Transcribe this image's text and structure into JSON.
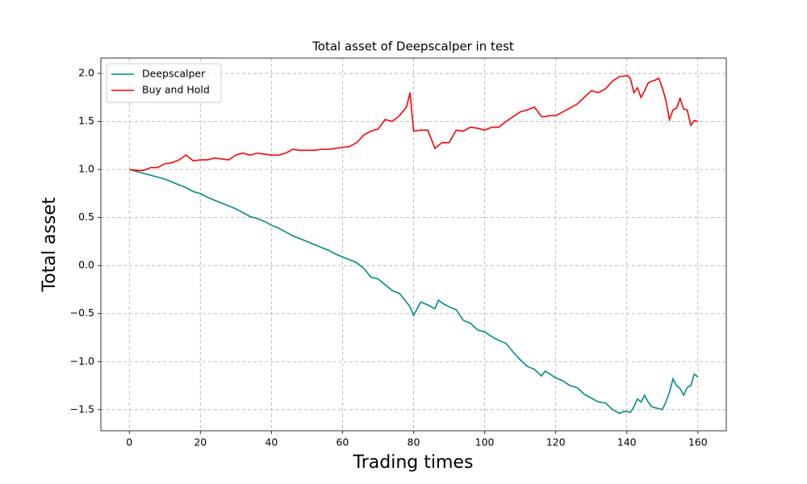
{
  "chart_data": {
    "type": "line",
    "title": "Total asset of Deepscalper in test",
    "x_label": "Trading times",
    "y_label": "Total asset",
    "x": [
      0,
      2,
      4,
      6,
      8,
      10,
      12,
      14,
      16,
      18,
      20,
      22,
      24,
      26,
      28,
      30,
      32,
      34,
      36,
      38,
      40,
      42,
      44,
      46,
      48,
      50,
      52,
      54,
      56,
      58,
      60,
      62,
      64,
      66,
      68,
      70,
      72,
      74,
      76,
      78,
      79,
      80,
      82,
      84,
      86,
      87,
      88,
      90,
      92,
      94,
      96,
      98,
      100,
      102,
      104,
      106,
      108,
      110,
      112,
      114,
      116,
      117,
      118,
      120,
      122,
      124,
      126,
      128,
      130,
      132,
      134,
      136,
      138,
      139,
      140,
      141,
      142,
      143,
      144,
      145,
      146,
      147,
      148,
      149,
      150,
      151,
      152,
      153,
      154,
      155,
      156,
      157,
      158,
      159,
      160
    ],
    "series": [
      {
        "name": "Deepscalper",
        "color": "#008b8b",
        "values": [
          1.0,
          0.98,
          0.96,
          0.94,
          0.92,
          0.9,
          0.87,
          0.84,
          0.81,
          0.77,
          0.75,
          0.71,
          0.68,
          0.65,
          0.62,
          0.59,
          0.55,
          0.51,
          0.49,
          0.46,
          0.42,
          0.39,
          0.35,
          0.31,
          0.28,
          0.25,
          0.22,
          0.19,
          0.16,
          0.12,
          0.09,
          0.06,
          0.03,
          -0.03,
          -0.12,
          -0.14,
          -0.2,
          -0.26,
          -0.29,
          -0.38,
          -0.43,
          -0.52,
          -0.38,
          -0.41,
          -0.45,
          -0.36,
          -0.39,
          -0.43,
          -0.46,
          -0.57,
          -0.6,
          -0.67,
          -0.69,
          -0.74,
          -0.78,
          -0.81,
          -0.9,
          -0.98,
          -1.05,
          -1.08,
          -1.15,
          -1.1,
          -1.12,
          -1.17,
          -1.2,
          -1.25,
          -1.27,
          -1.34,
          -1.38,
          -1.42,
          -1.43,
          -1.5,
          -1.54,
          -1.52,
          -1.52,
          -1.53,
          -1.47,
          -1.39,
          -1.42,
          -1.35,
          -1.42,
          -1.47,
          -1.48,
          -1.49,
          -1.5,
          -1.42,
          -1.32,
          -1.18,
          -1.25,
          -1.28,
          -1.35,
          -1.27,
          -1.25,
          -1.13,
          -1.16
        ]
      },
      {
        "name": "Buy and Hold",
        "color": "#ff0000",
        "values": [
          1.0,
          0.99,
          0.99,
          1.02,
          1.02,
          1.06,
          1.07,
          1.1,
          1.15,
          1.09,
          1.1,
          1.1,
          1.12,
          1.11,
          1.1,
          1.15,
          1.17,
          1.15,
          1.17,
          1.16,
          1.15,
          1.15,
          1.17,
          1.21,
          1.2,
          1.2,
          1.2,
          1.21,
          1.21,
          1.22,
          1.23,
          1.24,
          1.28,
          1.36,
          1.4,
          1.42,
          1.52,
          1.5,
          1.56,
          1.65,
          1.8,
          1.4,
          1.41,
          1.41,
          1.22,
          1.25,
          1.28,
          1.28,
          1.41,
          1.4,
          1.44,
          1.43,
          1.41,
          1.44,
          1.44,
          1.5,
          1.55,
          1.6,
          1.62,
          1.65,
          1.55,
          1.55,
          1.56,
          1.56,
          1.6,
          1.64,
          1.68,
          1.75,
          1.82,
          1.8,
          1.84,
          1.92,
          1.97,
          1.97,
          1.98,
          1.95,
          1.8,
          1.85,
          1.75,
          1.82,
          1.9,
          1.92,
          1.93,
          1.95,
          1.85,
          1.72,
          1.52,
          1.62,
          1.64,
          1.74,
          1.63,
          1.62,
          1.46,
          1.51,
          1.5
        ]
      }
    ],
    "xlim": [
      -8,
      168
    ],
    "ylim": [
      -1.72,
      2.16
    ],
    "xticks": [
      0,
      20,
      40,
      60,
      80,
      100,
      120,
      140,
      160
    ],
    "yticks": [
      {
        "value": -1.5,
        "label": "−1.5"
      },
      {
        "value": -1.0,
        "label": "−1.0"
      },
      {
        "value": -0.5,
        "label": "−0.5"
      },
      {
        "value": 0,
        "label": "0.0"
      },
      {
        "value": 0.5,
        "label": "0.5"
      },
      {
        "value": 1.0,
        "label": "1.0"
      },
      {
        "value": 1.5,
        "label": "1.5"
      },
      {
        "value": 2.0,
        "label": "2.0"
      }
    ],
    "grid": true,
    "legend": "upper-left"
  }
}
